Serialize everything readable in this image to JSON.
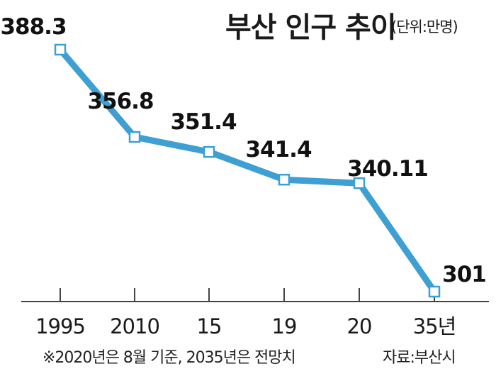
{
  "chart_data": {
    "type": "line",
    "title": "부산 인구 추이",
    "unit_label": "(단위:만명)",
    "categories": [
      "1995",
      "2010",
      "15",
      "19",
      "20",
      "35년"
    ],
    "series": [
      {
        "values": [
          388.3,
          356.8,
          351.4,
          341.4,
          340.11,
          301
        ]
      }
    ],
    "data_labels": [
      "388.3",
      "356.8",
      "351.4",
      "341.4",
      "340.11",
      "301"
    ],
    "ylim": [
      301,
      388.3
    ],
    "grid": false,
    "colors": {
      "line": "#3e9fd2",
      "marker_fill": "#ffffff",
      "marker_stroke": "#3e9fd2",
      "axis": "#444444"
    }
  },
  "footnote": "※2020년은 8월 기준, 2035년은 전망치",
  "source": "자료:부산시"
}
